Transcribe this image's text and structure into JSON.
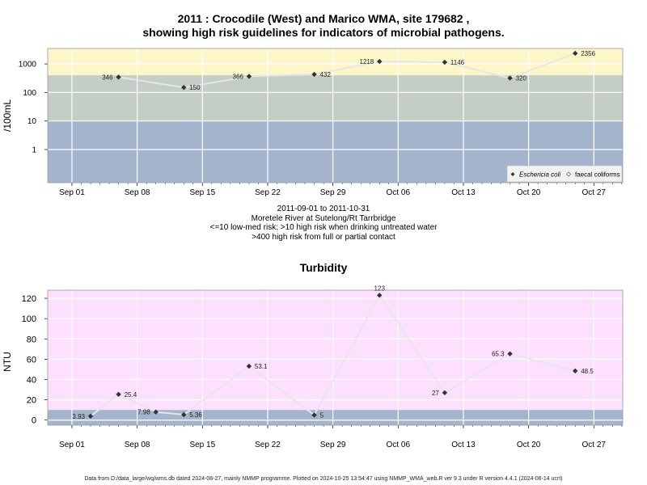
{
  "top": {
    "title_line1": "2011 : Crocodile (West) and Marico WMA, site 179682 ,",
    "title_line2": "showing high risk guidelines for indicators of microbial pathogens.",
    "caption": [
      "2011-09-01 to 2011-10-31",
      "Moretele River at Sutelong/Rt Tarrbridge",
      "<=10 low-med risk; >10 high risk when drinking untreated water",
      ">400 high risk from full or partial contact"
    ],
    "legend": [
      "Eschericia coli",
      "faecal coliforms"
    ]
  },
  "bottom": {
    "title": "Turbidity"
  },
  "footer": "Data from D:/data_large/wq/wms.db dated 2024-08-27, mainly NMMP programme. Plotted on 2024-10-25 13:54:47 using NMMP_WMA_web.R ver 9.3 under R version 4.4.1 (2024-06-14 ucrt)",
  "colors": {
    "band_low": "#a3b4cc",
    "band_mid": "#c4cdc6",
    "band_high": "#fdf6c8",
    "turb_band_low": "#a3b4cc",
    "turb_bg": "#fde0fd",
    "line": "#e6e6e6",
    "point": "#333333"
  },
  "chart_data": [
    {
      "type": "scatter",
      "ylabel": "/100mL",
      "yscale": "log",
      "x_ticks": [
        "Sep 01",
        "Sep 08",
        "Sep 15",
        "Sep 22",
        "Sep 29",
        "Oct 06",
        "Oct 13",
        "Oct 20",
        "Oct 27"
      ],
      "y_ticks": [
        "1",
        "10",
        "100",
        "1000"
      ],
      "thresholds": [
        10,
        400
      ],
      "series": [
        {
          "name": "Eschericia coli",
          "x": [
            "2011-09-06",
            "2011-09-13",
            "2011-09-20",
            "2011-09-27",
            "2011-10-04",
            "2011-10-11",
            "2011-10-18",
            "2011-10-25"
          ],
          "y": [
            346,
            150,
            366,
            432,
            1218,
            1146,
            320,
            2356
          ],
          "labels": [
            "346",
            "150",
            "366",
            "432",
            "1218",
            "1146",
            "320",
            "2356"
          ]
        }
      ]
    },
    {
      "type": "scatter",
      "title": "Turbidity",
      "ylabel": "NTU",
      "x_ticks": [
        "Sep 01",
        "Sep 08",
        "Sep 15",
        "Sep 22",
        "Sep 29",
        "Oct 06",
        "Oct 13",
        "Oct 20",
        "Oct 27"
      ],
      "y_ticks": [
        "0",
        "20",
        "40",
        "60",
        "80",
        "100",
        "120"
      ],
      "ylim": [
        -5,
        128
      ],
      "threshold": 10,
      "series": [
        {
          "x": [
            "2011-09-03",
            "2011-09-06",
            "2011-09-10",
            "2011-09-13",
            "2011-09-20",
            "2011-09-27",
            "2011-10-04",
            "2011-10-11",
            "2011-10-18",
            "2011-10-25"
          ],
          "y": [
            3.93,
            25.4,
            7.98,
            5.36,
            53.1,
            5,
            123,
            27,
            65.3,
            48.5
          ],
          "labels": [
            "3.93",
            "25.4",
            "7.98",
            "5.36",
            "53.1",
            "5",
            "123",
            "27",
            "65.3",
            "48.5"
          ]
        }
      ]
    }
  ]
}
